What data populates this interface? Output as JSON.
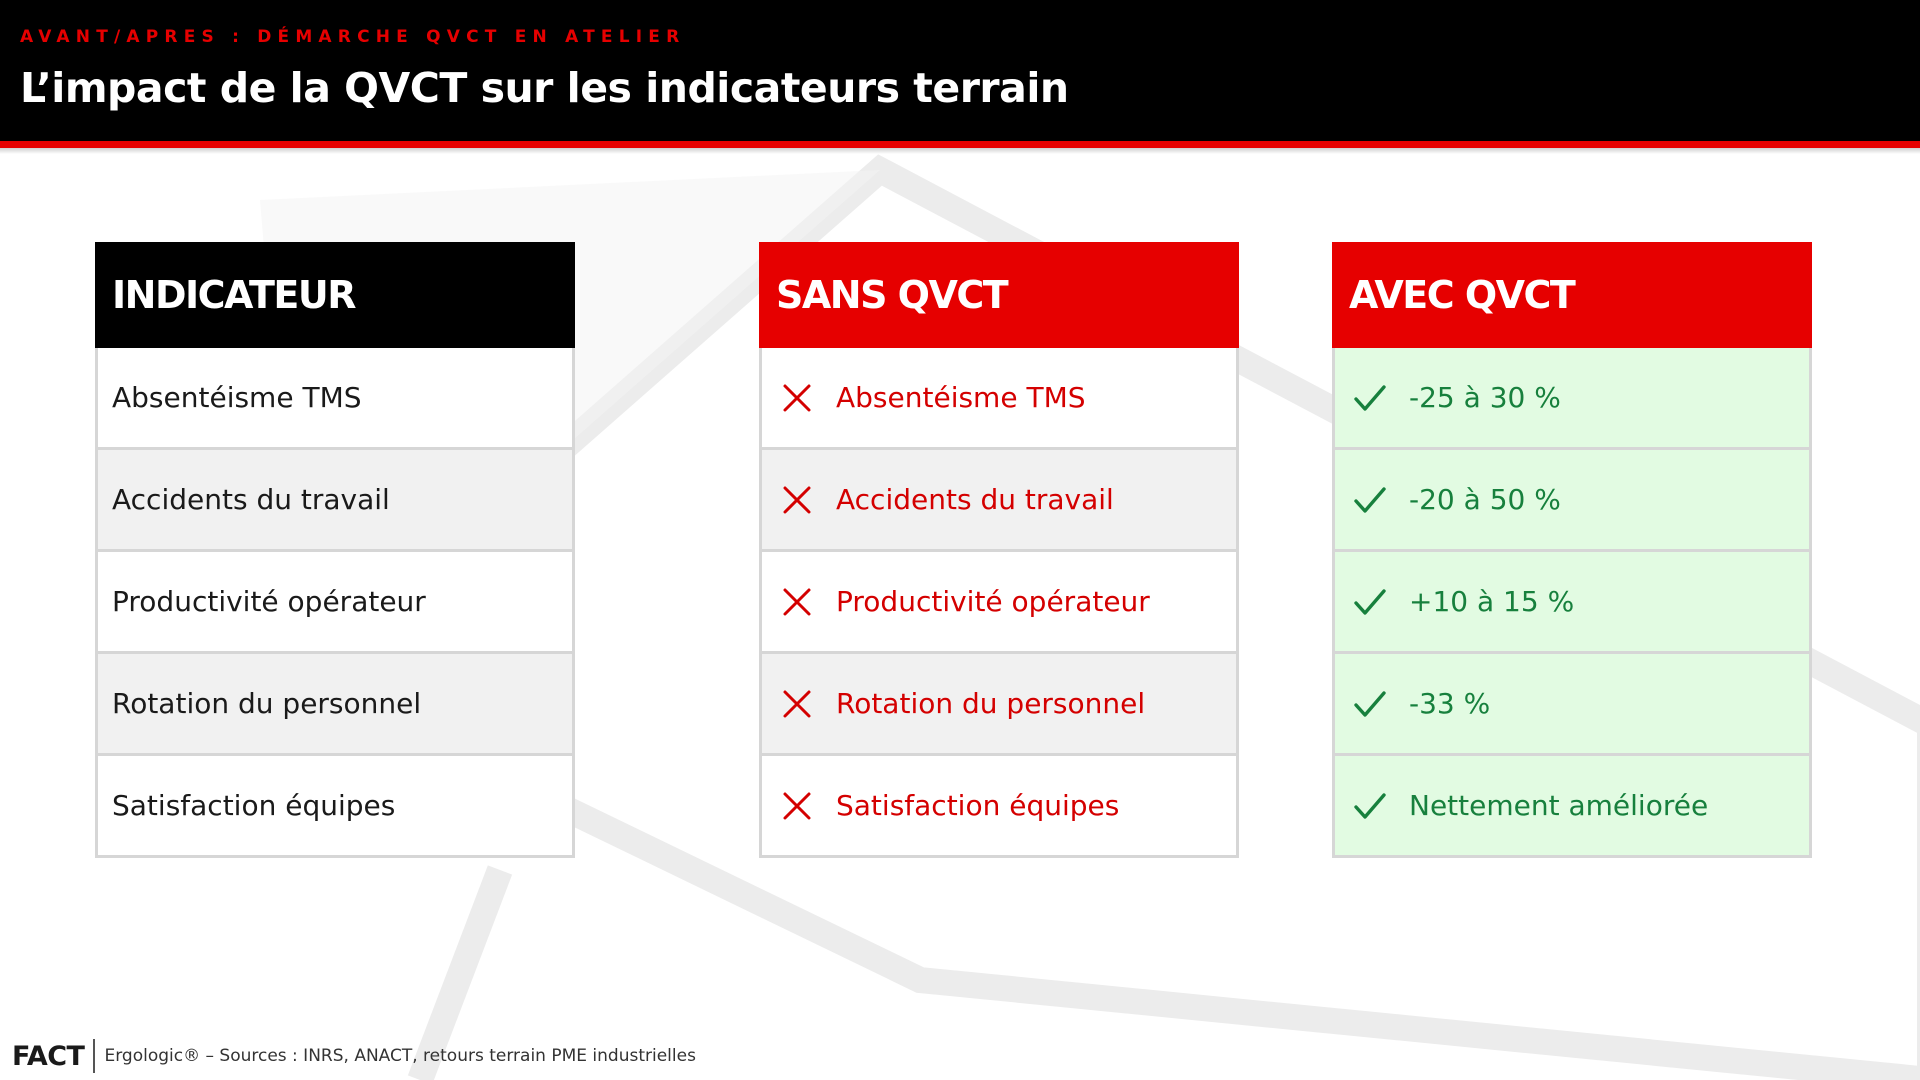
{
  "header": {
    "kicker": "AVANT/APRES : DÉMARCHE QVCT EN ATELIER",
    "title": "L’impact de la QVCT sur les indicateurs terrain"
  },
  "table": {
    "indicator_header": "INDICATEUR",
    "sans_header": "SANS QVCT",
    "avec_header": "AVEC QVCT",
    "indicators": [
      "Absentéisme TMS",
      "Accidents du travail",
      "Productivité opérateur",
      "Rotation du personnel",
      "Satisfaction équipes"
    ],
    "sans_values": [
      "Absentéisme TMS",
      "Accidents du travail",
      "Productivité opérateur",
      "Rotation du personnel",
      "Satisfaction équipes"
    ],
    "avec_values": [
      "-25 à 30 %",
      "-20 à 50 %",
      "+10 à 15 %",
      "-33 %",
      "Nettement améliorée"
    ],
    "sans_icon": "cross-icon",
    "avec_icon": "check-icon"
  },
  "footer": {
    "logo": "FACT",
    "source": "Ergologic® – Sources : INRS, ANACT, retours terrain PME industrielles"
  },
  "colors": {
    "brand_red": "#e60000",
    "header_black": "#000000",
    "negative_text": "#d40000",
    "positive_text": "#17803d",
    "positive_background": "#e2fbe2"
  }
}
